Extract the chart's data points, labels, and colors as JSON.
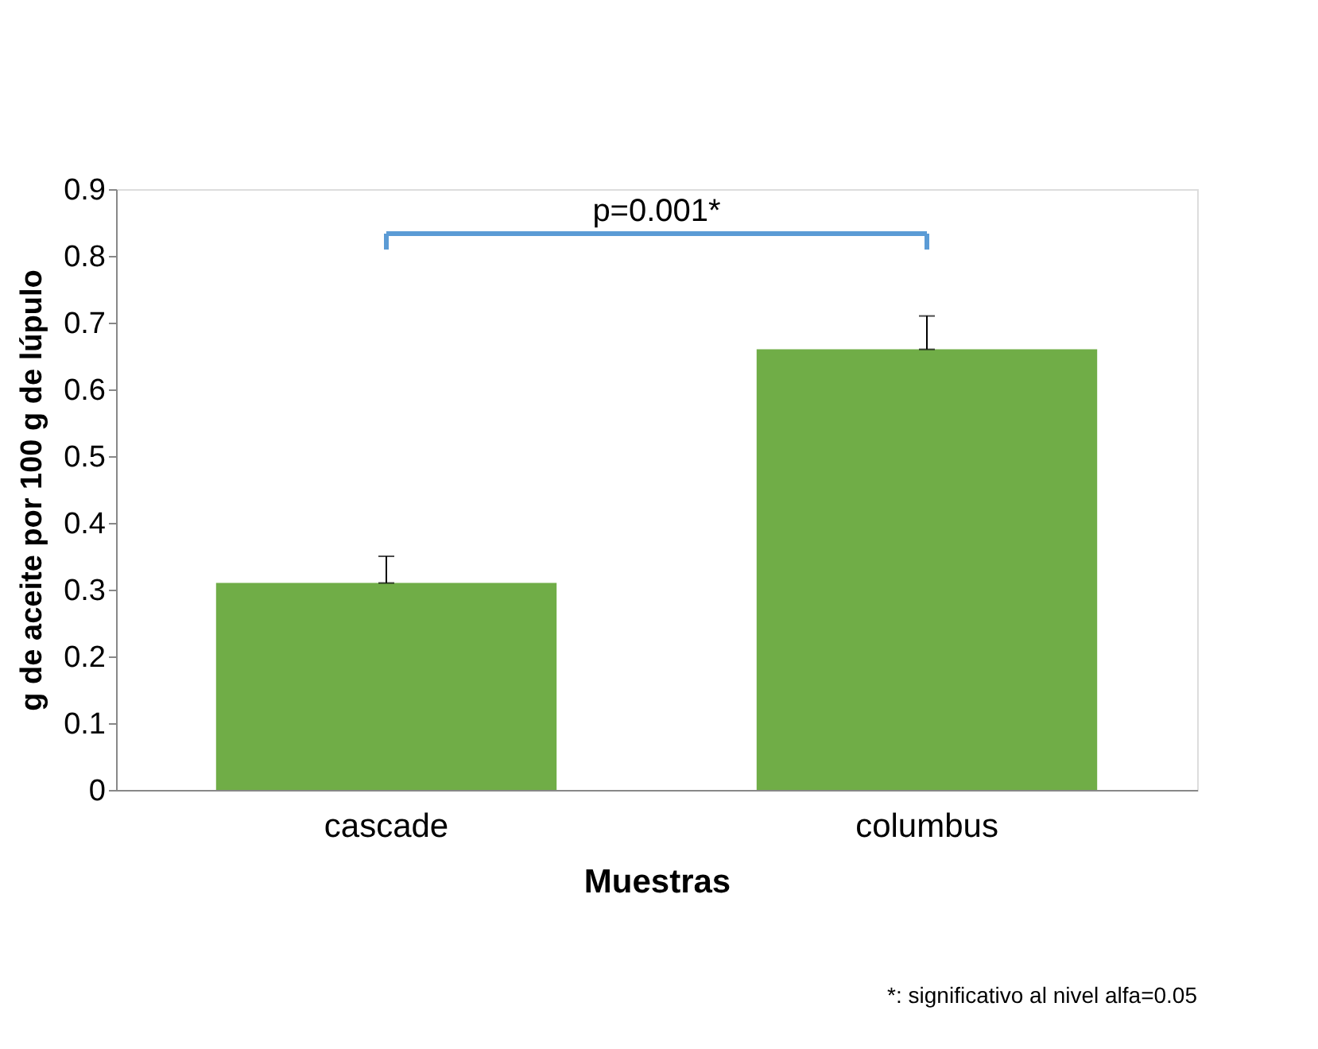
{
  "chart_data": {
    "type": "bar",
    "xlabel": "Muestras",
    "ylabel": "g de aceite por 100 g de lúpulo",
    "categories": [
      "cascade",
      "columbus"
    ],
    "values": [
      0.31,
      0.66
    ],
    "color": "#70ad47",
    "errors": [
      [
        0.31,
        0.35
      ],
      [
        0.66,
        0.71
      ]
    ],
    "ylim": [
      0,
      0.9
    ],
    "yticks": [
      0,
      0.1,
      0.2,
      0.3,
      0.4,
      0.5,
      0.6,
      0.7,
      0.8,
      0.9
    ],
    "grid": false,
    "annotations": [
      "p=0.001*",
      "*: significativo al nivel alfa=0.05"
    ]
  }
}
